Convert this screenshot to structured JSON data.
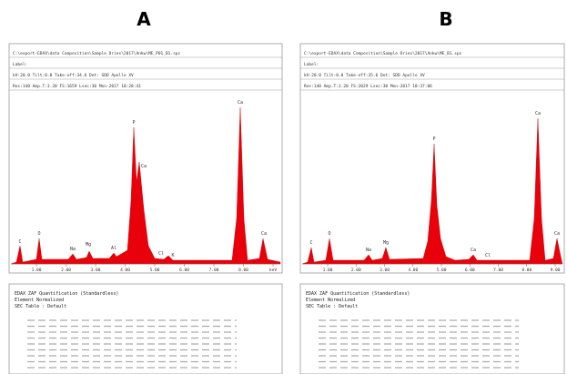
{
  "panels": [
    {
      "title": "A",
      "header": [
        "C:\\export-EDAX\\data Composition\\Sample Dries\\2017\\Ankw\\ME_P01_B1.spc",
        "Label:",
        "kV:20.0 Tilt:0.0 Take-off:34.6 Det: SDD Apollo XV",
        "Res:140 Amp.T:3.20 FS:1659 Lsec:30 Mon-2017 10:28:41"
      ],
      "ticks": [
        "1.00",
        "2.00",
        "3.00",
        "4.00",
        "5.00",
        "6.00",
        "7.00",
        "8.00",
        "keV"
      ],
      "peaks": [
        "C",
        "O",
        "Na",
        "Mg",
        "Al",
        "P",
        "Ca",
        "Cl",
        "K",
        "Ca",
        "Ca"
      ],
      "table": [
        "EDAX ZAF Quantification (Standardless)",
        "Element Normalized",
        "SEC Table : Default"
      ]
    },
    {
      "title": "B",
      "header": [
        "C:\\export-EDAX\\data Composition\\Sample Dries\\2017\\Ankw\\ME_B1.spc",
        "Label:",
        "kV:20.0 Tilt:0.0 Take-off:35.6 Det: SDD Apollo XV",
        "Res:140 Amp.T:3.20 FS:2029 Lsec:30 Mon-2017 10:37:06"
      ],
      "ticks": [
        "1.00",
        "2.00",
        "3.00",
        "4.00",
        "5.00",
        "6.00",
        "7.00",
        "8.00",
        "9.00"
      ],
      "peaks": [
        "C",
        "O",
        "Na",
        "Mg",
        "P",
        "Ca",
        "Cl",
        "Ca",
        "Ca"
      ],
      "table": [
        "EDAX ZAF Quantification (Standardless)",
        "Element Normalized",
        "SEC Table : Default"
      ]
    }
  ]
}
